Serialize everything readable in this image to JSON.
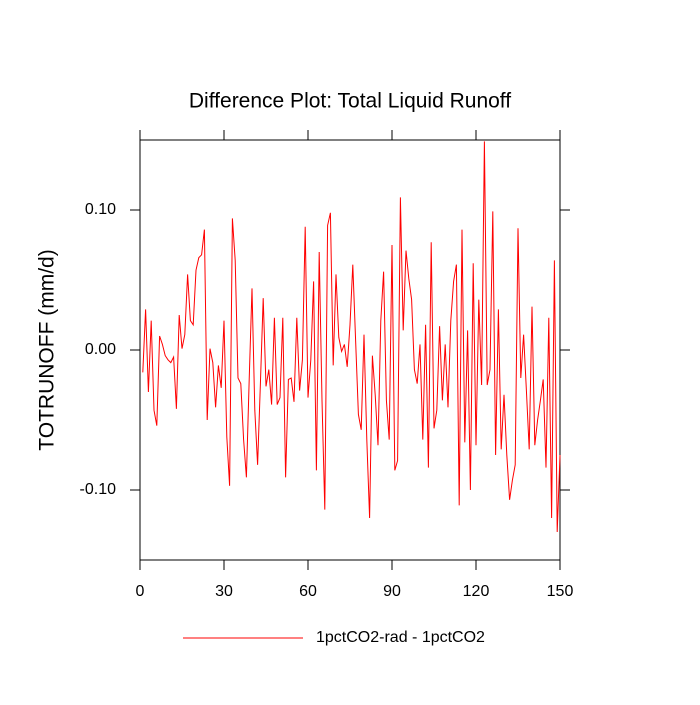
{
  "chart_data": {
    "type": "line",
    "title": "Difference Plot: Total Liquid Runoff",
    "y_label": "TOTRUNOFF  (mm/d)",
    "x": [
      1,
      2,
      3,
      4,
      5,
      6,
      7,
      8,
      9,
      10,
      11,
      12,
      13,
      14,
      15,
      16,
      17,
      18,
      19,
      20,
      21,
      22,
      23,
      24,
      25,
      26,
      27,
      28,
      29,
      30,
      31,
      32,
      33,
      34,
      35,
      36,
      37,
      38,
      39,
      40,
      41,
      42,
      43,
      44,
      45,
      46,
      47,
      48,
      49,
      50,
      51,
      52,
      53,
      54,
      55,
      56,
      57,
      58,
      59,
      60,
      61,
      62,
      63,
      64,
      65,
      66,
      67,
      68,
      69,
      70,
      71,
      72,
      73,
      74,
      75,
      76,
      77,
      78,
      79,
      80,
      81,
      82,
      83,
      84,
      85,
      86,
      87,
      88,
      89,
      90,
      91,
      92,
      93,
      94,
      95,
      96,
      97,
      98,
      99,
      100,
      101,
      102,
      103,
      104,
      105,
      106,
      107,
      108,
      109,
      110,
      111,
      112,
      113,
      114,
      115,
      116,
      117,
      118,
      119,
      120,
      121,
      122,
      123,
      124,
      125,
      126,
      127,
      128,
      129,
      130,
      131,
      132,
      133,
      134,
      135,
      136,
      137,
      138,
      139,
      140,
      141,
      142,
      143,
      144,
      145,
      146,
      147,
      148,
      149,
      150
    ],
    "series": [
      {
        "name": "1pctCO2-rad - 1pctCO2",
        "color": "#ff0000",
        "values": [
          -0.016,
          0.029,
          -0.03,
          0.021,
          -0.043,
          -0.054,
          0.01,
          0.004,
          -0.004,
          -0.007,
          -0.009,
          -0.005,
          -0.042,
          0.025,
          0.001,
          0.011,
          0.054,
          0.021,
          0.018,
          0.057,
          0.066,
          0.068,
          0.086,
          -0.05,
          0.001,
          -0.009,
          -0.041,
          -0.011,
          -0.027,
          0.021,
          -0.062,
          -0.097,
          0.094,
          0.064,
          -0.02,
          -0.024,
          -0.064,
          -0.091,
          -0.021,
          0.044,
          -0.043,
          -0.082,
          -0.024,
          0.037,
          -0.026,
          -0.014,
          -0.039,
          0.023,
          -0.039,
          -0.034,
          0.023,
          -0.091,
          -0.021,
          -0.02,
          -0.037,
          0.023,
          -0.029,
          -0.007,
          0.088,
          -0.034,
          -0.007,
          0.049,
          -0.086,
          0.07,
          -0.036,
          -0.114,
          0.089,
          0.098,
          -0.011,
          0.054,
          0.009,
          -0.001,
          0.004,
          -0.012,
          0.018,
          0.061,
          0.007,
          -0.046,
          -0.057,
          0.011,
          -0.064,
          -0.12,
          -0.004,
          -0.032,
          -0.068,
          0.021,
          0.056,
          -0.036,
          -0.064,
          0.075,
          -0.086,
          -0.079,
          0.109,
          0.014,
          0.071,
          0.051,
          0.036,
          -0.014,
          -0.024,
          0.004,
          -0.064,
          0.018,
          -0.084,
          0.077,
          -0.056,
          -0.043,
          0.017,
          -0.036,
          0.004,
          -0.041,
          0.021,
          0.049,
          0.061,
          -0.111,
          0.086,
          -0.066,
          0.014,
          -0.1,
          0.062,
          -0.068,
          0.036,
          -0.025,
          0.149,
          -0.025,
          -0.014,
          0.099,
          -0.075,
          0.029,
          -0.071,
          -0.032,
          -0.075,
          -0.107,
          -0.093,
          -0.082,
          0.087,
          -0.02,
          0.011,
          -0.029,
          -0.071,
          0.031,
          -0.068,
          -0.05,
          -0.036,
          -0.021,
          -0.084,
          0.023,
          -0.12,
          0.064,
          -0.13,
          -0.075
        ]
      }
    ],
    "xlim": [
      0,
      150
    ],
    "xticks": [
      0,
      30,
      60,
      90,
      120,
      150
    ],
    "ylim": [
      -0.15,
      0.15
    ],
    "yticks": [
      {
        "value": -0.1,
        "label": "-0.10"
      },
      {
        "value": 0,
        "label": "0.00"
      },
      {
        "value": 0.1,
        "label": "0.10"
      }
    ],
    "legend": "bottom"
  }
}
